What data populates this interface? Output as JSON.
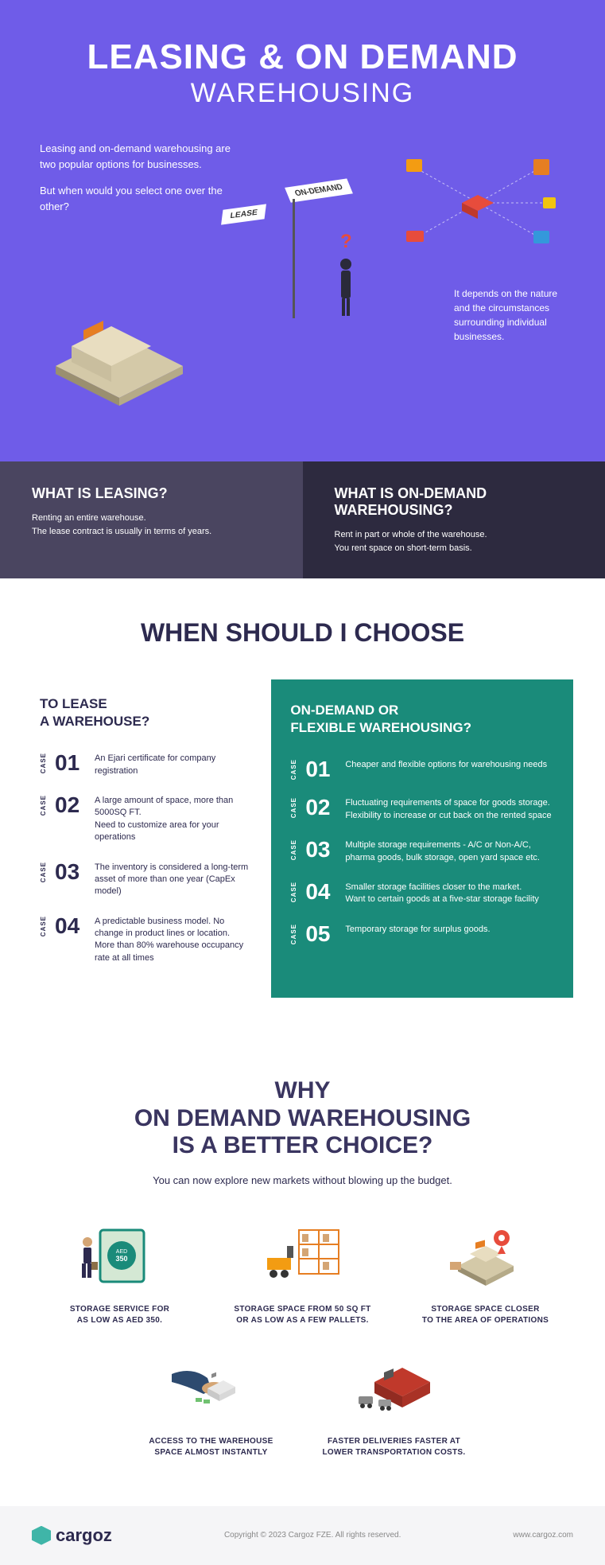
{
  "colors": {
    "hero_bg": "#6f5ce8",
    "def_left_bg": "#4a4560",
    "def_right_bg": "#2d2a3f",
    "ondemand_bg": "#1a8b7a",
    "text_dark": "#2d2a4f",
    "accent": "#3fb5a8"
  },
  "hero": {
    "title": "LEASING & ON DEMAND",
    "subtitle": "WAREHOUSING",
    "intro1": "Leasing and on-demand warehousing are two popular options for businesses.",
    "intro2": "But when would you select one over the other?",
    "sign_lease": "LEASE",
    "sign_ondemand": "ON-DEMAND",
    "depends": "It depends on the nature and the circumstances surrounding individual businesses."
  },
  "definitions": {
    "leasing": {
      "title": "WHAT IS LEASING?",
      "text": "Renting an entire warehouse.\nThe lease contract is usually in terms of years."
    },
    "ondemand": {
      "title": "WHAT IS ON-DEMAND WAREHOUSING?",
      "text": "Rent in part or whole of the warehouse.\nYou rent space on short-term basis."
    }
  },
  "choose": {
    "title": "WHEN SHOULD I CHOOSE",
    "case_label": "CASE",
    "lease": {
      "heading": "TO LEASE\nA WAREHOUSE?",
      "cases": [
        {
          "n": "01",
          "t": "An Ejari certificate for company registration"
        },
        {
          "n": "02",
          "t": "A large amount of space, more than 5000SQ FT.\nNeed to customize area for your operations"
        },
        {
          "n": "03",
          "t": "The inventory is considered a long-term asset of more than one year (CapEx model)"
        },
        {
          "n": "04",
          "t": "A predictable business model. No change in product lines or location.\nMore than 80% warehouse occupancy rate at all times"
        }
      ]
    },
    "ondemand": {
      "heading": "ON-DEMAND OR\nFLEXIBLE WAREHOUSING?",
      "cases": [
        {
          "n": "01",
          "t": "Cheaper and flexible options for warehousing needs"
        },
        {
          "n": "02",
          "t": "Fluctuating requirements of space for goods storage. Flexibility to increase or cut back on the rented space"
        },
        {
          "n": "03",
          "t": "Multiple storage requirements - A/C or Non-A/C, pharma goods, bulk storage, open yard space etc."
        },
        {
          "n": "04",
          "t": "Smaller storage facilities closer to the market.\nWant to certain goods at a five-star storage facility"
        },
        {
          "n": "05",
          "t": "Temporary storage for surplus goods."
        }
      ]
    }
  },
  "why": {
    "title": "WHY\nON DEMAND WAREHOUSING\nIS A BETTER CHOICE?",
    "subtitle": "You can now explore new markets without blowing up the budget.",
    "benefits": [
      {
        "icon": "money",
        "text": "STORAGE SERVICE FOR\nAS LOW AS AED 350."
      },
      {
        "icon": "pallets",
        "text": "STORAGE SPACE FROM 50 SQ FT\nOR AS LOW AS A FEW PALLETS."
      },
      {
        "icon": "location",
        "text": "STORAGE SPACE CLOSER\nTO THE AREA OF OPERATIONS"
      },
      {
        "icon": "instant",
        "text": "ACCESS TO THE WAREHOUSE\nSPACE ALMOST INSTANTLY"
      },
      {
        "icon": "delivery",
        "text": "FASTER DELIVERIES FASTER AT\nLOWER TRANSPORTATION COSTS."
      }
    ]
  },
  "footer": {
    "brand": "cargoz",
    "copyright": "Copyright © 2023 Cargoz FZE. All rights reserved.",
    "url": "www.cargoz.com"
  }
}
